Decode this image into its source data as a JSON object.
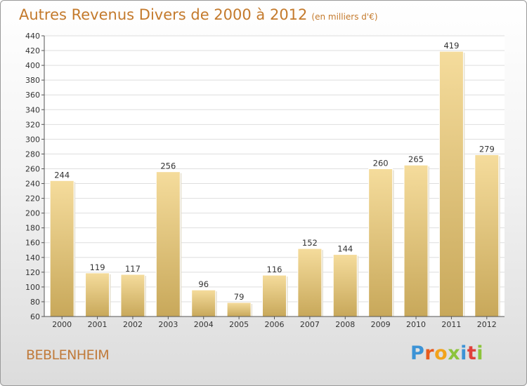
{
  "title": "Autres Revenus Divers de 2000 à 2012",
  "unit": "(en milliers d'€)",
  "city": "BEBLENHEIM",
  "logo": [
    "P",
    "r",
    "o",
    "x",
    "i",
    "t",
    "i"
  ],
  "colors": {
    "bar_top": "#f5dc9c",
    "bar_bottom": "#c8a85a",
    "title": "#c47a2c"
  },
  "chart_data": {
    "type": "bar",
    "title": "Autres Revenus Divers de 2000 à 2012",
    "categories": [
      "2000",
      "2001",
      "2002",
      "2003",
      "2004",
      "2005",
      "2006",
      "2007",
      "2008",
      "2009",
      "2010",
      "2011",
      "2012"
    ],
    "values": [
      244,
      119,
      117,
      256,
      96,
      79,
      116,
      152,
      144,
      260,
      265,
      419,
      279
    ],
    "ylim": [
      60,
      440
    ],
    "yticks": [
      60,
      80,
      100,
      120,
      140,
      160,
      180,
      200,
      220,
      240,
      260,
      280,
      300,
      320,
      340,
      360,
      380,
      400,
      420,
      440
    ],
    "grid": true,
    "legend": "none"
  }
}
